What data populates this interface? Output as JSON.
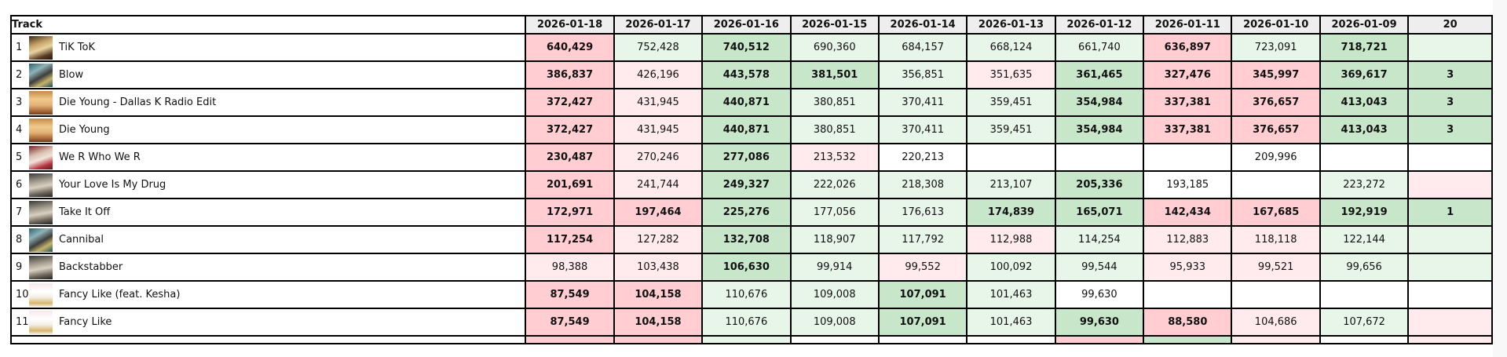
{
  "table": {
    "track_header": "Track",
    "dates": [
      "2026-01-18",
      "2026-01-17",
      "2026-01-16",
      "2026-01-15",
      "2026-01-14",
      "2026-01-13",
      "2026-01-12",
      "2026-01-11",
      "2026-01-10",
      "2026-01-09",
      "20"
    ],
    "legend_colors": {
      "strong_red": "#ffcdd2",
      "light_red": "#ffebee",
      "strong_green": "#c8e6c9",
      "light_green": "#e8f5e9",
      "none": "#ffffff",
      "header_bg": "#eeeeee"
    },
    "rows": [
      {
        "rank": "1",
        "title": "TiK ToK",
        "art": "tiktok",
        "cells": [
          [
            "640,429",
            "sr"
          ],
          [
            "752,428",
            "lg"
          ],
          [
            "740,512",
            "sg"
          ],
          [
            "690,360",
            "lg"
          ],
          [
            "684,157",
            "lg"
          ],
          [
            "668,124",
            "lg"
          ],
          [
            "661,740",
            "lg"
          ],
          [
            "636,897",
            "sr"
          ],
          [
            "723,091",
            "lg"
          ],
          [
            "718,721",
            "sg"
          ],
          [
            "",
            "lg"
          ]
        ]
      },
      {
        "rank": "2",
        "title": "Blow",
        "art": "cannibal",
        "cells": [
          [
            "386,837",
            "sr"
          ],
          [
            "426,196",
            "lr"
          ],
          [
            "443,578",
            "sg"
          ],
          [
            "381,501",
            "sg"
          ],
          [
            "356,851",
            "lg"
          ],
          [
            "351,635",
            "lr"
          ],
          [
            "361,465",
            "sg"
          ],
          [
            "327,476",
            "sr"
          ],
          [
            "345,997",
            "sr"
          ],
          [
            "369,617",
            "sg"
          ],
          [
            "3",
            "sg"
          ]
        ]
      },
      {
        "rank": "3",
        "title": "Die Young - Dallas K Radio Edit",
        "art": "warrior",
        "cells": [
          [
            "372,427",
            "sr"
          ],
          [
            "431,945",
            "lr"
          ],
          [
            "440,871",
            "sg"
          ],
          [
            "380,851",
            "lg"
          ],
          [
            "370,411",
            "lg"
          ],
          [
            "359,451",
            "lg"
          ],
          [
            "354,984",
            "sg"
          ],
          [
            "337,381",
            "sr"
          ],
          [
            "376,657",
            "sr"
          ],
          [
            "413,043",
            "sg"
          ],
          [
            "3",
            "sg"
          ]
        ]
      },
      {
        "rank": "4",
        "title": "Die Young",
        "art": "warrior",
        "cells": [
          [
            "372,427",
            "sr"
          ],
          [
            "431,945",
            "lr"
          ],
          [
            "440,871",
            "sg"
          ],
          [
            "380,851",
            "lg"
          ],
          [
            "370,411",
            "lg"
          ],
          [
            "359,451",
            "lg"
          ],
          [
            "354,984",
            "sg"
          ],
          [
            "337,381",
            "sr"
          ],
          [
            "376,657",
            "sr"
          ],
          [
            "413,043",
            "sg"
          ],
          [
            "3",
            "sg"
          ]
        ]
      },
      {
        "rank": "5",
        "title": "We R Who We R",
        "art": "werwho",
        "cells": [
          [
            "230,487",
            "sr"
          ],
          [
            "270,246",
            "lr"
          ],
          [
            "277,086",
            "sg"
          ],
          [
            "213,532",
            "lr"
          ],
          [
            "220,213",
            "w"
          ],
          [
            "",
            "w"
          ],
          [
            "",
            "w"
          ],
          [
            "",
            "w"
          ],
          [
            "209,996",
            "w"
          ],
          [
            "",
            "w"
          ],
          [
            "",
            "w"
          ]
        ]
      },
      {
        "rank": "6",
        "title": "Your Love Is My Drug",
        "art": "animal",
        "cells": [
          [
            "201,691",
            "sr"
          ],
          [
            "241,744",
            "lr"
          ],
          [
            "249,327",
            "sg"
          ],
          [
            "222,026",
            "lg"
          ],
          [
            "218,308",
            "lg"
          ],
          [
            "213,107",
            "lg"
          ],
          [
            "205,336",
            "sg"
          ],
          [
            "193,185",
            "w"
          ],
          [
            "",
            "w"
          ],
          [
            "223,272",
            "lg"
          ],
          [
            "",
            "lr"
          ]
        ]
      },
      {
        "rank": "7",
        "title": "Take It Off",
        "art": "animal",
        "cells": [
          [
            "172,971",
            "sr"
          ],
          [
            "197,464",
            "sr"
          ],
          [
            "225,276",
            "sg"
          ],
          [
            "177,056",
            "lg"
          ],
          [
            "176,613",
            "lg"
          ],
          [
            "174,839",
            "sg"
          ],
          [
            "165,071",
            "sg"
          ],
          [
            "142,434",
            "sr"
          ],
          [
            "167,685",
            "sr"
          ],
          [
            "192,919",
            "sg"
          ],
          [
            "1",
            "sg"
          ]
        ]
      },
      {
        "rank": "8",
        "title": "Cannibal",
        "art": "cannibal",
        "cells": [
          [
            "117,254",
            "sr"
          ],
          [
            "127,282",
            "lr"
          ],
          [
            "132,708",
            "sg"
          ],
          [
            "118,907",
            "lg"
          ],
          [
            "117,792",
            "lg"
          ],
          [
            "112,988",
            "lr"
          ],
          [
            "114,254",
            "lg"
          ],
          [
            "112,883",
            "lr"
          ],
          [
            "118,118",
            "lr"
          ],
          [
            "122,144",
            "lg"
          ],
          [
            "",
            "lg"
          ]
        ]
      },
      {
        "rank": "9",
        "title": "Backstabber",
        "art": "animal",
        "cells": [
          [
            "98,388",
            "lr"
          ],
          [
            "103,438",
            "lr"
          ],
          [
            "106,630",
            "sg"
          ],
          [
            "99,914",
            "lg"
          ],
          [
            "99,552",
            "lr"
          ],
          [
            "100,092",
            "lg"
          ],
          [
            "99,544",
            "lg"
          ],
          [
            "95,933",
            "lr"
          ],
          [
            "99,521",
            "lr"
          ],
          [
            "99,656",
            "lg"
          ],
          [
            "",
            "lg"
          ]
        ]
      },
      {
        "rank": "10",
        "title": "Fancy Like (feat. Kesha)",
        "art": "fancy",
        "cells": [
          [
            "87,549",
            "sr"
          ],
          [
            "104,158",
            "sr"
          ],
          [
            "110,676",
            "lg"
          ],
          [
            "109,008",
            "lg"
          ],
          [
            "107,091",
            "sg"
          ],
          [
            "101,463",
            "lg"
          ],
          [
            "99,630",
            "w"
          ],
          [
            "",
            "w"
          ],
          [
            "",
            "w"
          ],
          [
            "",
            "w"
          ],
          [
            "",
            "w"
          ]
        ]
      },
      {
        "rank": "11",
        "title": "Fancy Like",
        "art": "fancy",
        "cells": [
          [
            "87,549",
            "sr"
          ],
          [
            "104,158",
            "sr"
          ],
          [
            "110,676",
            "lg"
          ],
          [
            "109,008",
            "lg"
          ],
          [
            "107,091",
            "sg"
          ],
          [
            "101,463",
            "lg"
          ],
          [
            "99,630",
            "sg"
          ],
          [
            "88,580",
            "sr"
          ],
          [
            "104,686",
            "lr"
          ],
          [
            "107,672",
            "lg"
          ],
          [
            "",
            "lr"
          ]
        ]
      }
    ],
    "partial_row_colors": [
      "sr",
      "sr",
      "lg",
      "w",
      "w",
      "w",
      "sr",
      "sg",
      "lr",
      "w",
      "lr"
    ]
  }
}
